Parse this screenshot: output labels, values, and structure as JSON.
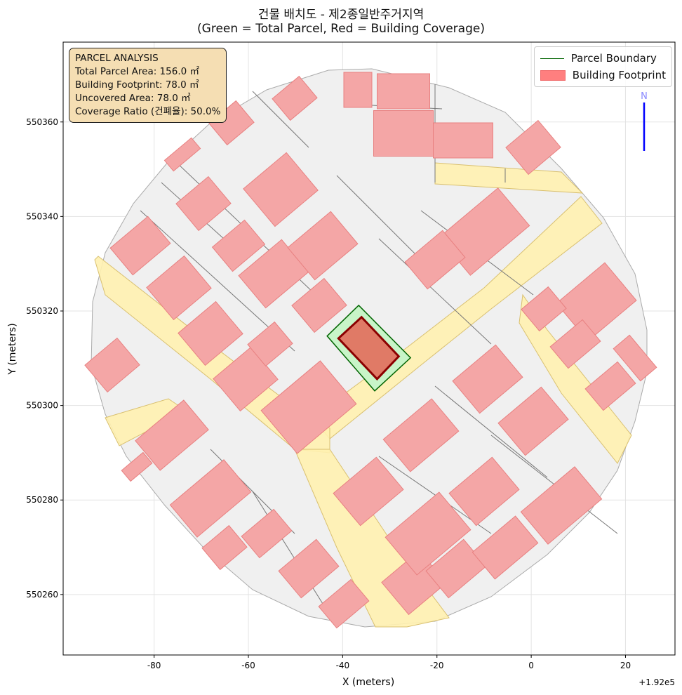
{
  "title_line1": "건물 배치도 - 제2종일반주거지역",
  "title_line2": "(Green = Total Parcel, Red = Building Coverage)",
  "info_box": {
    "heading": "PARCEL ANALYSIS",
    "total_parcel": "Total Parcel Area: 156.0 ㎡",
    "building_footprint": "Building Footprint: 78.0 ㎡",
    "uncovered": "Uncovered Area: 78.0 ㎡",
    "coverage": "Coverage Ratio (건폐율): 50.0%"
  },
  "legend": {
    "parcel_boundary": "Parcel Boundary",
    "building_footprint": "Building Footprint"
  },
  "north_label": "N",
  "colors": {
    "parcel_fill": "#c8f5c8",
    "parcel_edge": "#006400",
    "building_fill": "#e07a66",
    "building_edge": "#8b0000",
    "context_building": "#f4a6a6",
    "road": "#fff1b0",
    "ground": "#f0f0f0",
    "info_box": "#f5deb3",
    "north_arrow": "#0000ff"
  },
  "chart_data": {
    "type": "map",
    "xlabel": "X (meters)",
    "ylabel": "Y (meters)",
    "x_offset_label": "+1.92e5",
    "x_offset": 192000,
    "xlim": [
      -99.3,
      30.5
    ],
    "ylim": [
      550247.2,
      550376.9
    ],
    "grid": true,
    "legend_position": "top-right",
    "x_ticks": [
      "-80",
      "-60",
      "-40",
      "-20",
      "0",
      "20"
    ],
    "y_ticks": [
      "550260",
      "550280",
      "550300",
      "550320",
      "550340",
      "550360"
    ],
    "parcel": [
      [
        -43.3,
        550314.7
      ],
      [
        -36.6,
        550321.2
      ],
      [
        -25.6,
        550310.1
      ],
      [
        -33.2,
        550303.1
      ]
    ],
    "building": [
      [
        -40.9,
        550314.2
      ],
      [
        -36.0,
        550318.7
      ],
      [
        -28.1,
        550310.4
      ],
      [
        -32.7,
        550305.6
      ]
    ],
    "parcel_area_m2": 156.0,
    "building_area_m2": 78.0,
    "uncovered_area_m2": 78.0,
    "coverage_ratio_pct": 50.0
  }
}
